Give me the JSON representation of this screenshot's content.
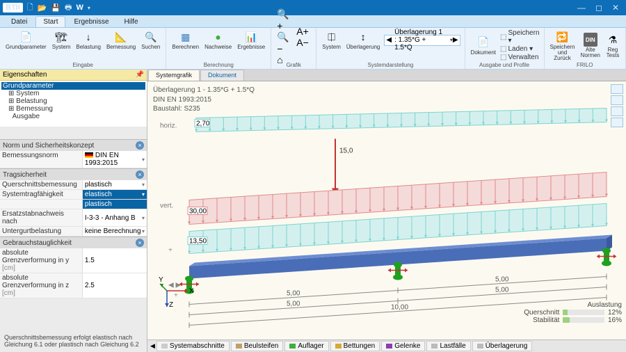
{
  "titlebar": {
    "logo": "BTII",
    "w": "W"
  },
  "menu": {
    "tabs": [
      "Datei",
      "Start",
      "Ergebnisse",
      "Hilfe"
    ],
    "active": 1
  },
  "ribbon": {
    "groups": [
      {
        "title": "Eingabe",
        "items": [
          {
            "icon": "📄",
            "label": "Grundparameter"
          },
          {
            "icon": "🏗",
            "label": "System"
          },
          {
            "icon": "↓",
            "label": "Belastung"
          },
          {
            "icon": "📐",
            "label": "Bemessung"
          },
          {
            "icon": "🔍",
            "label": "Suchen"
          }
        ]
      },
      {
        "title": "Berechnung",
        "items": [
          {
            "icon": "▦",
            "label": "Berechnen",
            "color": "#3a7fbf"
          },
          {
            "icon": "●",
            "label": "Nachweise",
            "color": "#3fae3f"
          },
          {
            "icon": "📊",
            "label": "Ergebnisse",
            "color": "#e07b2f"
          }
        ]
      },
      {
        "title": "Grafik",
        "items": [
          {
            "icon": "🔍+ 🔍− ⌂",
            "label": ""
          },
          {
            "icon": "A+ A−",
            "label": ""
          }
        ]
      },
      {
        "title": "Systemdarstellung",
        "items": [
          {
            "icon": "⎅",
            "label": "System"
          },
          {
            "icon": "↕",
            "label": "Überlagerung"
          }
        ],
        "combo": "Überlagerung 1 : 1.35*G + 1.5*Q"
      },
      {
        "title": "Ausgabe und Profile",
        "items": [
          {
            "icon": "📄",
            "label": "Dokument"
          }
        ],
        "small": [
          [
            "⬚",
            "Speichern ▾"
          ],
          [
            "⬚",
            "Laden ▾"
          ],
          [
            "⬚",
            "Verwalten"
          ]
        ]
      },
      {
        "title": "FRILO",
        "items": [
          {
            "icon": "🔁",
            "label": "Speichern\nund Zurück"
          },
          {
            "icon": "DIN",
            "label": "Alte\nNormen",
            "bg": "#666"
          },
          {
            "icon": "⚗",
            "label": "Reg\nTests"
          }
        ]
      }
    ]
  },
  "left": {
    "propsHead": "Eigenschaften",
    "tree": {
      "sel": "Grundparameter",
      "nodes": [
        "System",
        "Belastung",
        "Bemessung",
        "Ausgabe"
      ]
    },
    "sect1": {
      "title": "Norm und Sicherheitskonzept",
      "rows": [
        {
          "l": "Bemessungsnorm",
          "v": "DIN EN 1993:2015",
          "flag": true
        }
      ]
    },
    "sect2": {
      "title": "Tragsicherheit",
      "rows": [
        {
          "l": "Querschnittsbemessung",
          "v": "plastisch",
          "dd": true
        },
        {
          "l": "Systemtragfähigkeit",
          "v": "elastisch",
          "dd": true,
          "sel": true,
          "opt2": "plastisch"
        },
        {
          "l": "Ersatzstabnachweis nach",
          "v": "I-3-3 - Anhang B",
          "dd": true
        },
        {
          "l": "Untergurtbelastung",
          "v": "keine Berechnung",
          "dd": true
        }
      ]
    },
    "sect3": {
      "title": "Gebrauchstauglichkeit",
      "rows": [
        {
          "l": "absolute Grenzverformung in y",
          "u": "[cm]",
          "v": "1.5"
        },
        {
          "l": "absolute Grenzverformung in z",
          "u": "[cm]",
          "v": "2.5"
        }
      ]
    },
    "hint": "Querschnittsbemessung erfolgt elastisch nach Gleichung 6.1 oder plastisch nach Gleichung 6.2"
  },
  "canvas": {
    "tabs": [
      "Systemgrafik",
      "Dokument"
    ],
    "active": 0,
    "info": [
      "Überlagerung 1 - 1.35*G + 1.5*Q",
      "DIN EN 1993:2015",
      "Baustahl: S235"
    ],
    "hlabel": "horiz.",
    "vlabel": "vert.",
    "load_horiz": "2,70",
    "load_p": "15,0",
    "load_red": "30,00",
    "load_teal": "13,50",
    "dim1": "5,00",
    "dim2": "5,00",
    "dim3": "5,00",
    "dim4": "5,00",
    "dim_total": "10,00",
    "colors": {
      "teal": "#7dd3d0",
      "teal_fill": "#d4f0ee",
      "red": "#e08a8a",
      "red_fill": "#f5dada",
      "beam": "#4a6db8",
      "beam_top": "#6d8dd1",
      "support": "#1fa01f",
      "arrow": "#c43030",
      "dim": "#888"
    }
  },
  "util": {
    "title": "Auslastung",
    "q": "Querschnitt",
    "qv": "12%",
    "qb": 12,
    "s": "Stabilität",
    "sv": "16%",
    "sb": 16
  },
  "btabs": [
    {
      "l": "Systemabschnitte",
      "c": "#ccc"
    },
    {
      "l": "Beulsteifen",
      "c": "#bfa06a"
    },
    {
      "l": "Auflager",
      "c": "#3fae3f"
    },
    {
      "l": "Bettungen",
      "c": "#d8a838"
    },
    {
      "l": "Gelenke",
      "c": "#8a3fae"
    },
    {
      "l": "Lastfälle",
      "c": "#bbb"
    },
    {
      "l": "Überlagerung",
      "c": "#bbb"
    }
  ]
}
